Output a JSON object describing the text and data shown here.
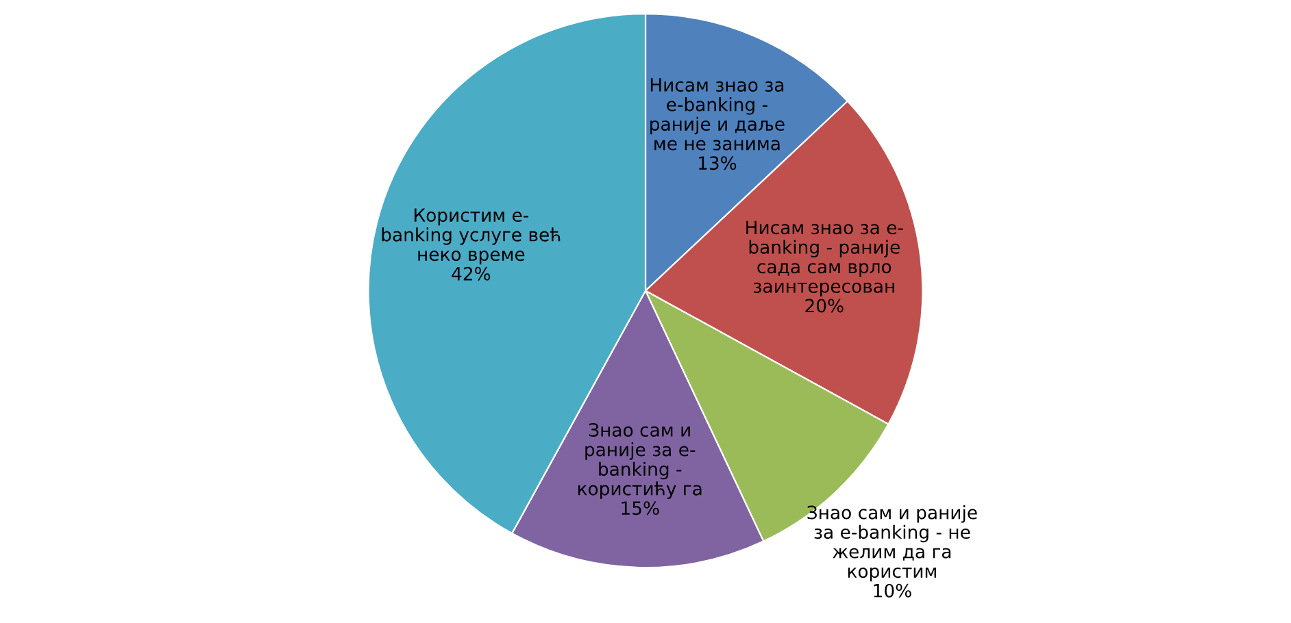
{
  "chart_data": {
    "type": "pie",
    "categories": [
      "Нисам знао за\ne-banking -\nраније и даље\nме не занима",
      "Нисам знао за e-\nbanking - раније\nсада сам врло\nзаинтересован",
      "Знао сам и раније\nза e-banking - не\nжелим да га\nкористим",
      "Знао сам и\nраније за e-\nbanking -\nкористићу га",
      "Користим e-\nbanking услуге већ\nнеко време"
    ],
    "values": [
      13,
      20,
      10,
      15,
      42
    ],
    "value_labels": [
      "13%",
      "20%",
      "10%",
      "15%",
      "42%"
    ],
    "colors": [
      "#4f81bd",
      "#c0504d",
      "#9bbb59",
      "#8064a2",
      "#4bacc6"
    ],
    "legend": false
  }
}
